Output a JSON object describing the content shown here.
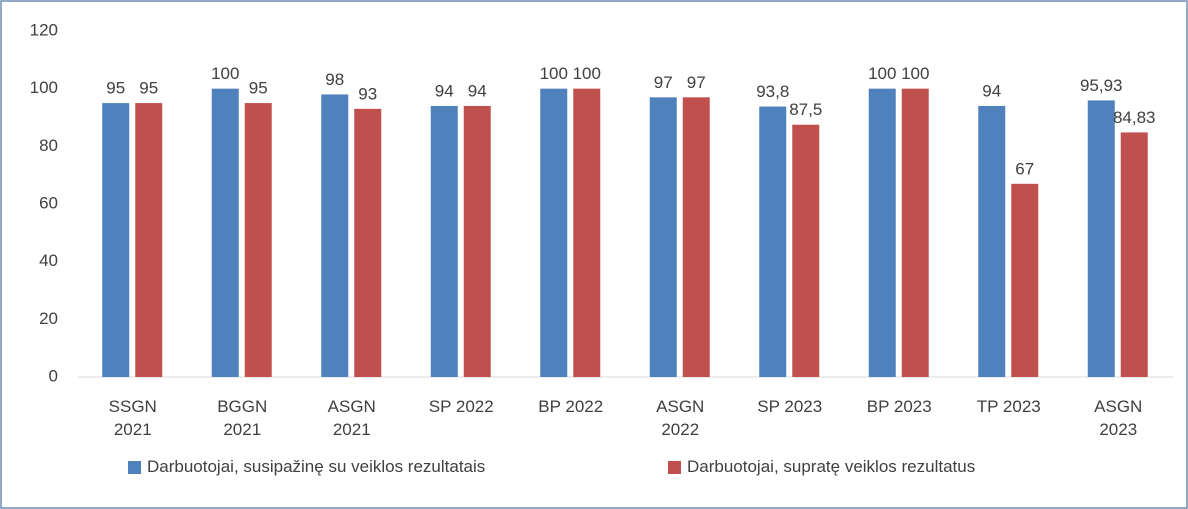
{
  "chart_data": {
    "type": "bar",
    "categories": [
      "SSGN 2021",
      "BGGN 2021",
      "ASGN 2021",
      "SP 2022",
      "BP 2022",
      "ASGN 2022",
      "SP 2023",
      "BP 2023",
      "TP 2023",
      "ASGN 2023"
    ],
    "series": [
      {
        "name": "Darbuotojai, susipažinę su veiklos rezultatais",
        "color": "#4f81bd",
        "values": [
          95,
          100,
          98,
          94,
          100,
          97,
          93.8,
          100,
          94,
          95.93
        ],
        "value_labels": [
          "95",
          "100",
          "98",
          "94",
          "100",
          "97",
          "93,8",
          "100",
          "94",
          "95,93"
        ]
      },
      {
        "name": "Darbuotojai, supratę veiklos rezultatus",
        "color": "#c0504d",
        "values": [
          95,
          95,
          93,
          94,
          100,
          97,
          87.5,
          100,
          67,
          84.83
        ],
        "value_labels": [
          "95",
          "95",
          "93",
          "94",
          "100",
          "97",
          "87,5",
          "100",
          "67",
          "84,83"
        ]
      }
    ],
    "ylim": [
      0,
      120
    ],
    "yticks": [
      0,
      20,
      40,
      60,
      80,
      100,
      120
    ],
    "grid": false,
    "legend": "bottom"
  }
}
